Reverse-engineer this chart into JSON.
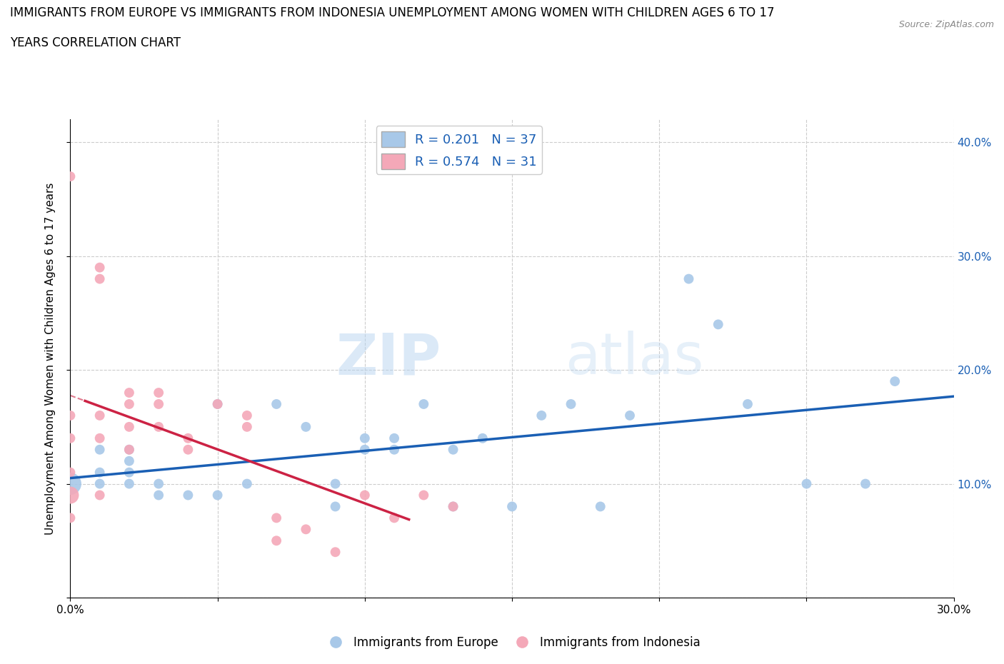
{
  "title_line1": "IMMIGRANTS FROM EUROPE VS IMMIGRANTS FROM INDONESIA UNEMPLOYMENT AMONG WOMEN WITH CHILDREN AGES 6 TO 17",
  "title_line2": "YEARS CORRELATION CHART",
  "source": "Source: ZipAtlas.com",
  "ylabel": "Unemployment Among Women with Children Ages 6 to 17 years",
  "xlim": [
    0.0,
    0.3
  ],
  "ylim": [
    0.0,
    0.42
  ],
  "xticks": [
    0.0,
    0.05,
    0.1,
    0.15,
    0.2,
    0.25,
    0.3
  ],
  "xticklabels": [
    "0.0%",
    "",
    "",
    "",
    "",
    "",
    "30.0%"
  ],
  "yticks": [
    0.0,
    0.1,
    0.2,
    0.3,
    0.4
  ],
  "yticklabels_left": [
    "",
    "",
    "",
    "",
    ""
  ],
  "yticklabels_right": [
    "",
    "10.0%",
    "20.0%",
    "30.0%",
    "40.0%"
  ],
  "blue_R": 0.201,
  "blue_N": 37,
  "pink_R": 0.574,
  "pink_N": 31,
  "blue_color": "#a8c8e8",
  "pink_color": "#f4a8b8",
  "blue_line_color": "#1a5fb4",
  "pink_line_color": "#cc2244",
  "blue_scatter_x": [
    0.0,
    0.01,
    0.01,
    0.01,
    0.02,
    0.02,
    0.02,
    0.02,
    0.03,
    0.03,
    0.04,
    0.05,
    0.05,
    0.06,
    0.07,
    0.08,
    0.09,
    0.09,
    0.1,
    0.1,
    0.11,
    0.11,
    0.12,
    0.13,
    0.13,
    0.14,
    0.15,
    0.16,
    0.17,
    0.18,
    0.19,
    0.21,
    0.22,
    0.23,
    0.25,
    0.27,
    0.28
  ],
  "blue_scatter_y": [
    0.1,
    0.1,
    0.11,
    0.13,
    0.1,
    0.11,
    0.12,
    0.13,
    0.09,
    0.1,
    0.09,
    0.09,
    0.17,
    0.1,
    0.17,
    0.15,
    0.08,
    0.1,
    0.13,
    0.14,
    0.13,
    0.14,
    0.17,
    0.08,
    0.13,
    0.14,
    0.08,
    0.16,
    0.17,
    0.08,
    0.16,
    0.28,
    0.24,
    0.17,
    0.1,
    0.1,
    0.19
  ],
  "blue_sizes": [
    200,
    40,
    40,
    40,
    40,
    40,
    40,
    40,
    40,
    40,
    40,
    40,
    40,
    40,
    40,
    40,
    40,
    40,
    40,
    40,
    40,
    40,
    40,
    40,
    40,
    40,
    40,
    40,
    40,
    40,
    40,
    40,
    40,
    40,
    40,
    40,
    40
  ],
  "pink_scatter_x": [
    0.0,
    0.0,
    0.0,
    0.0,
    0.0,
    0.0,
    0.01,
    0.01,
    0.01,
    0.01,
    0.01,
    0.02,
    0.02,
    0.02,
    0.02,
    0.03,
    0.03,
    0.03,
    0.04,
    0.04,
    0.05,
    0.06,
    0.06,
    0.07,
    0.07,
    0.08,
    0.09,
    0.1,
    0.11,
    0.12,
    0.13
  ],
  "pink_scatter_y": [
    0.37,
    0.16,
    0.14,
    0.11,
    0.09,
    0.07,
    0.29,
    0.28,
    0.16,
    0.14,
    0.09,
    0.18,
    0.17,
    0.15,
    0.13,
    0.18,
    0.17,
    0.15,
    0.14,
    0.13,
    0.17,
    0.16,
    0.15,
    0.07,
    0.05,
    0.06,
    0.04,
    0.09,
    0.07,
    0.09,
    0.08
  ],
  "pink_sizes": [
    40,
    40,
    40,
    40,
    120,
    40,
    40,
    40,
    40,
    40,
    40,
    40,
    40,
    40,
    40,
    40,
    40,
    40,
    40,
    40,
    40,
    40,
    40,
    40,
    40,
    40,
    40,
    40,
    40,
    40,
    40
  ],
  "legend_label_blue": "Immigrants from Europe",
  "legend_label_pink": "Immigrants from Indonesia",
  "grid_color": "#cccccc",
  "background_color": "#ffffff",
  "watermark_zip": "ZIP",
  "watermark_atlas": "atlas"
}
